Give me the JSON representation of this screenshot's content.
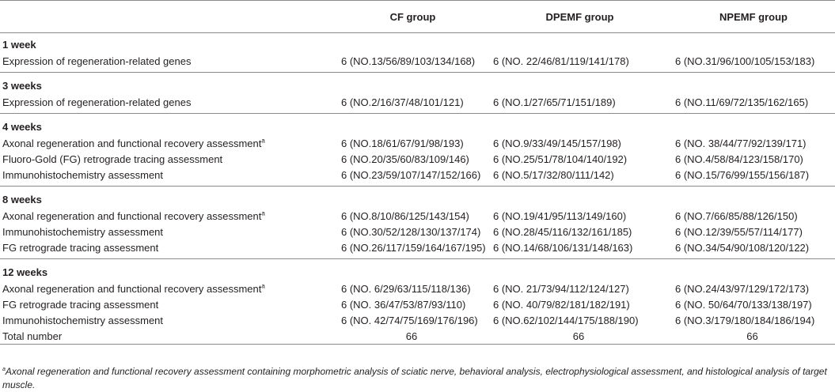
{
  "headers": [
    "",
    "CF group",
    "DPEMF group",
    "NPEMF group"
  ],
  "sections": [
    {
      "title": "1 week",
      "rows": [
        {
          "label": "Expression of regeneration-related genes",
          "mark": "",
          "cf": "6 (NO.13/56/89/103/134/168)",
          "dpemf": "6 (NO. 22/46/81/119/141/178)",
          "npemf": "6 (NO.31/96/100/105/153/183)"
        }
      ]
    },
    {
      "title": "3 weeks",
      "rows": [
        {
          "label": "Expression of regeneration-related genes",
          "mark": "",
          "cf": "6 (NO.2/16/37/48/101/121)",
          "dpemf": "6 (NO.1/27/65/71/151/189)",
          "npemf": "6 (NO.11/69/72/135/162/165)"
        }
      ]
    },
    {
      "title": "4 weeks",
      "rows": [
        {
          "label": "Axonal regeneration and functional recovery assessment",
          "mark": "a",
          "cf": "6 (NO.18/61/67/91/98/193)",
          "dpemf": "6 (NO.9/33/49/145/157/198)",
          "npemf": "6 (NO. 38/44/77/92/139/171)"
        },
        {
          "label": "Fluoro-Gold (FG) retrograde tracing assessment",
          "mark": "",
          "cf": "6 (NO.20/35/60/83/109/146)",
          "dpemf": "6 (NO.25/51/78/104/140/192)",
          "npemf": "6 (NO.4/58/84/123/158/170)"
        },
        {
          "label": "Immunohistochemistry assessment",
          "mark": "",
          "cf": "6 (NO.23/59/107/147/152/166)",
          "dpemf": "6 (NO.5/17/32/80/111/142)",
          "npemf": "6 (NO.15/76/99/155/156/187)"
        }
      ]
    },
    {
      "title": "8 weeks",
      "rows": [
        {
          "label": "Axonal regeneration and functional recovery assessment",
          "mark": "a",
          "cf": "6 (NO.8/10/86/125/143/154)",
          "dpemf": "6 (NO.19/41/95/113/149/160)",
          "npemf": "6 (NO.7/66/85/88/126/150)"
        },
        {
          "label": "Immunohistochemistry assessment",
          "mark": "",
          "cf": "6 (NO.30/52/128/130/137/174)",
          "dpemf": "6 (NO.28/45/116/132/161/185)",
          "npemf": "6 (NO.12/39/55/57/114/177)"
        },
        {
          "label": "FG retrograde tracing assessment",
          "mark": "",
          "cf": "6 (NO.26/117/159/164/167/195)",
          "dpemf": "6 (NO.14/68/106/131/148/163)",
          "npemf": "6 (NO.34/54/90/108/120/122)"
        }
      ]
    },
    {
      "title": "12 weeks",
      "rows": [
        {
          "label": "Axonal regeneration and functional recovery assessment",
          "mark": "a",
          "cf": "6 (NO. 6/29/63/115/118/136)",
          "dpemf": "6 (NO. 21/73/94/112/124/127)",
          "npemf": "6 (NO.24/43/97/129/172/173)"
        },
        {
          "label": "FG retrograde tracing assessment",
          "mark": "",
          "cf": "6 (NO. 36/47/53/87/93/110)",
          "dpemf": "6 (NO. 40/79/82/181/182/191)",
          "npemf": "6 (NO. 50/64/70/133/138/197)"
        },
        {
          "label": "Immunohistochemistry assessment",
          "mark": "",
          "cf": "6 (NO. 42/74/75/169/176/196)",
          "dpemf": "6 (NO.62/102/144/175/188/190)",
          "npemf": "6 (NO.3/179/180/184/186/194)"
        }
      ]
    }
  ],
  "total": {
    "label": "Total number",
    "cf": "66",
    "dpemf": "66",
    "npemf": "66"
  },
  "footnote": {
    "mark": "a",
    "text": "Axonal regeneration and functional recovery assessment containing morphometric analysis of sciatic nerve, behavioral analysis, electrophysiological assessment, and histological analysis of target muscle."
  }
}
